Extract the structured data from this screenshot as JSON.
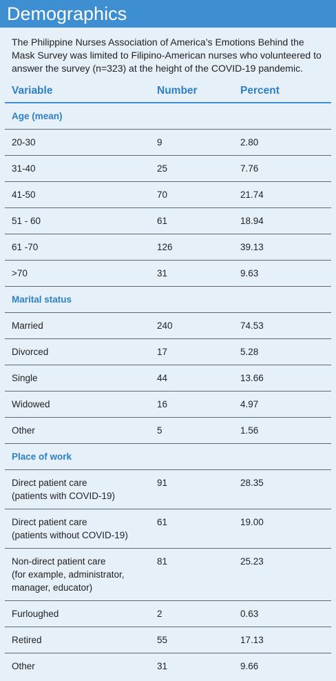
{
  "title": "Demographics",
  "intro": "The Philippine Nurses Association of America’s Emotions Behind the Mask Survey was limited to Filipino-American nurses who volunteered to answer the survey (n=323) at the height of the COVID-19 pandemic.",
  "columns": [
    "Variable",
    "Number",
    "Percent"
  ],
  "sections": [
    {
      "title": "Age (mean)",
      "rows": [
        [
          "20-30",
          "9",
          "2.80"
        ],
        [
          "31-40",
          "25",
          "7.76"
        ],
        [
          "41-50",
          "70",
          "21.74"
        ],
        [
          "51 - 60",
          "61",
          "18.94"
        ],
        [
          "61 -70",
          "126",
          "39.13"
        ],
        [
          ">70",
          "31",
          "9.63"
        ]
      ]
    },
    {
      "title": "Marital status",
      "rows": [
        [
          "Married",
          "240",
          "74.53"
        ],
        [
          "Divorced",
          "17",
          "5.28"
        ],
        [
          "Single",
          "44",
          "13.66"
        ],
        [
          "Widowed",
          "16",
          "4.97"
        ],
        [
          "Other",
          "5",
          "1.56"
        ]
      ]
    },
    {
      "title": "Place of work",
      "rows": [
        [
          [
            "Direct patient care",
            "(patients with COVID-19)"
          ],
          "91",
          "28.35"
        ],
        [
          [
            "Direct patient care",
            "(patients without COVID-19)"
          ],
          "61",
          "19.00"
        ],
        [
          [
            "Non-direct patient care",
            "(for example, administrator,",
            "manager, educator)"
          ],
          "81",
          "25.23"
        ],
        [
          "Furloughed",
          "2",
          "0.63"
        ],
        [
          "Retired",
          "55",
          "17.13"
        ],
        [
          "Other",
          "31",
          "9.66"
        ]
      ]
    }
  ]
}
